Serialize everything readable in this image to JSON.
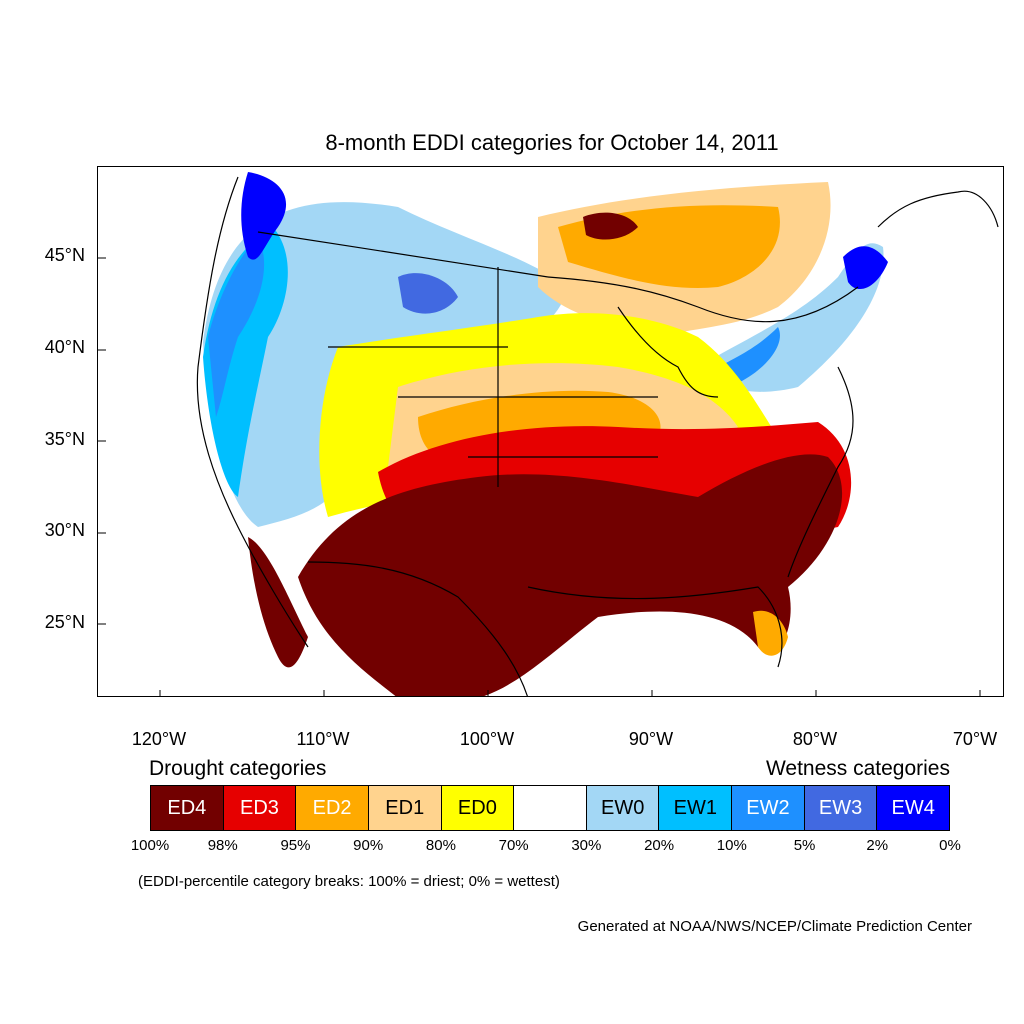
{
  "title": "8-month EDDI categories for October 14, 2011",
  "map": {
    "lat_labels": [
      "45°N",
      "40°N",
      "35°N",
      "30°N",
      "25°N"
    ],
    "lon_labels": [
      "120°W",
      "110°W",
      "100°W",
      "90°W",
      "80°W",
      "70°W"
    ],
    "colors": {
      "ED4": "#720000",
      "ED3": "#e60000",
      "ED2": "#ffaa00",
      "ED1": "#ffd38e",
      "ED0": "#ffff00",
      "neutral": "#ffffff",
      "EW0": "#a3d7f5",
      "EW1": "#00bfff",
      "EW2": "#1e90ff",
      "EW3": "#4169e1",
      "EW4": "#0000ff"
    }
  },
  "legend": {
    "drought_heading": "Drought categories",
    "wetness_heading": "Wetness categories",
    "categories": [
      {
        "label": "ED4",
        "color": "#720000",
        "text_color": "#ffffff"
      },
      {
        "label": "ED3",
        "color": "#e60000",
        "text_color": "#ffffff"
      },
      {
        "label": "ED2",
        "color": "#ffaa00",
        "text_color": "#ffffff"
      },
      {
        "label": "ED1",
        "color": "#ffd38e",
        "text_color": "#000000"
      },
      {
        "label": "ED0",
        "color": "#ffff00",
        "text_color": "#000000"
      },
      {
        "label": "",
        "color": "#ffffff",
        "text_color": "#000000"
      },
      {
        "label": "EW0",
        "color": "#a3d7f5",
        "text_color": "#000000"
      },
      {
        "label": "EW1",
        "color": "#00bfff",
        "text_color": "#000000"
      },
      {
        "label": "EW2",
        "color": "#1e90ff",
        "text_color": "#ffffff"
      },
      {
        "label": "EW3",
        "color": "#4169e1",
        "text_color": "#ffffff"
      },
      {
        "label": "EW4",
        "color": "#0000ff",
        "text_color": "#ffffff"
      }
    ],
    "breaks": [
      "100%",
      "98%",
      "95%",
      "90%",
      "80%",
      "70%",
      "30%",
      "20%",
      "10%",
      "5%",
      "2%",
      "0%"
    ]
  },
  "note": "(EDDI-percentile category breaks: 100% = driest; 0% = wettest)",
  "credit": "Generated at NOAA/NWS/NCEP/Climate Prediction Center"
}
